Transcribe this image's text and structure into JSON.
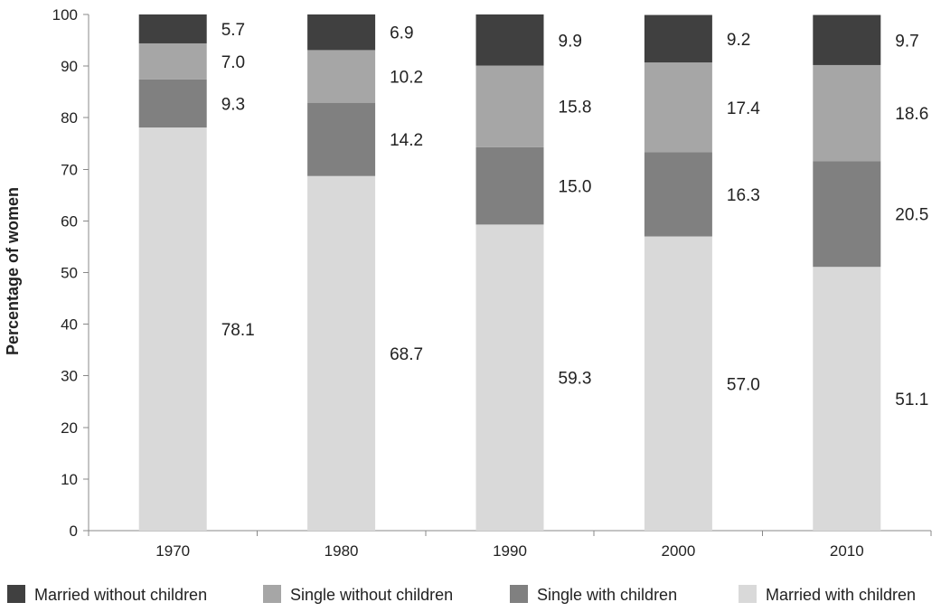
{
  "chart_data": {
    "type": "bar",
    "stacked": true,
    "categories": [
      "1970",
      "1980",
      "1990",
      "2000",
      "2010"
    ],
    "ylabel": "Percentage of women",
    "xlabel": "",
    "ylim": [
      0,
      100
    ],
    "yticks": [
      "0",
      "10",
      "20",
      "30",
      "40",
      "50",
      "60",
      "70",
      "80",
      "90",
      "100"
    ],
    "grid": false,
    "legend_position": "bottom",
    "series": [
      {
        "name": "Married with children",
        "color": "#d9d9d9",
        "values": [
          78.1,
          68.7,
          59.3,
          57.0,
          51.1
        ],
        "labels": [
          "78.1",
          "68.7",
          "59.3",
          "57.0",
          "51.1"
        ]
      },
      {
        "name": "Single with children",
        "color": "#808080",
        "values": [
          9.3,
          14.2,
          15.0,
          16.3,
          20.5
        ],
        "labels": [
          "9.3",
          "14.2",
          "15.0",
          "16.3",
          "20.5"
        ]
      },
      {
        "name": "Single without children",
        "color": "#a6a6a6",
        "values": [
          7.0,
          10.2,
          15.8,
          17.4,
          18.6
        ],
        "labels": [
          "7.0",
          "10.2",
          "15.8",
          "17.4",
          "18.6"
        ]
      },
      {
        "name": "Married without children",
        "color": "#404040",
        "values": [
          5.7,
          6.9,
          9.9,
          9.2,
          9.7
        ],
        "labels": [
          "5.7",
          "6.9",
          "9.9",
          "9.2",
          "9.7"
        ]
      }
    ],
    "legend_order": [
      "Married without children",
      "Single without children",
      "Single with children",
      "Married with children"
    ]
  }
}
